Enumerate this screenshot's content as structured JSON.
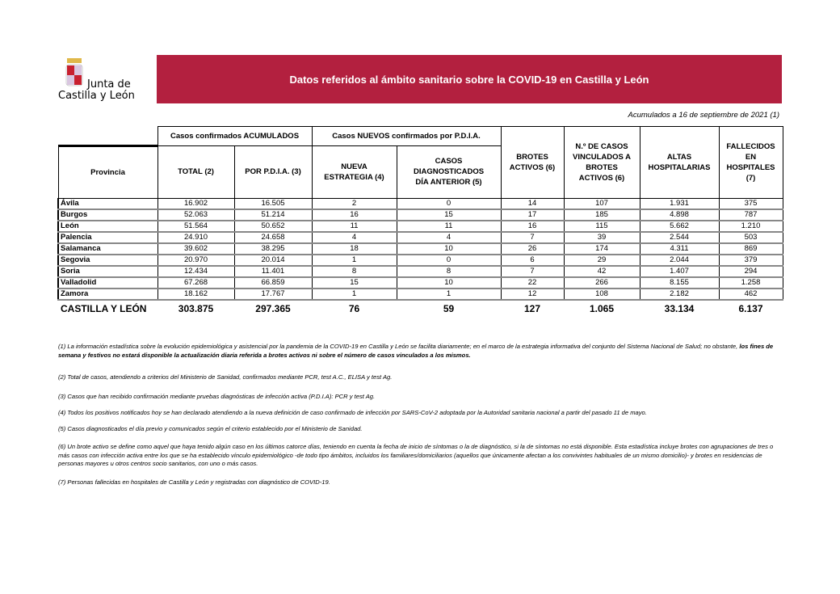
{
  "logo": {
    "line1": "Junta de",
    "line2": "Castilla y León"
  },
  "banner": {
    "title": "Datos referidos al ámbito sanitario sobre la COVID-19 en Castilla y León"
  },
  "date_note": "Acumulados a 16 de septiembre de 2021 (1)",
  "colors": {
    "banner": "#b3203f"
  },
  "table": {
    "group_headers": [
      "Casos confirmados ACUMULADOS",
      "Casos NUEVOS confirmados por P.D.I.A."
    ],
    "headers": [
      "Provincia",
      "TOTAL (2)",
      "POR P.D.I.A. (3)",
      "NUEVA ESTRATEGIA (4)",
      "CASOS DIAGNOSTICADOS DÍA ANTERIOR (5)",
      "BROTES ACTIVOS (6)",
      "N.º DE CASOS VINCULADOS A BROTES ACTIVOS (6)",
      "ALTAS HOSPITALARIAS",
      "FALLECIDOS EN HOSPITALES (7)"
    ],
    "rows": [
      [
        "Ávila",
        "16.902",
        "16.505",
        "2",
        "0",
        "14",
        "107",
        "1.931",
        "375"
      ],
      [
        "Burgos",
        "52.063",
        "51.214",
        "16",
        "15",
        "17",
        "185",
        "4.898",
        "787"
      ],
      [
        "León",
        "51.564",
        "50.652",
        "11",
        "11",
        "16",
        "115",
        "5.662",
        "1.210"
      ],
      [
        "Palencia",
        "24.910",
        "24.658",
        "4",
        "4",
        "7",
        "39",
        "2.544",
        "503"
      ],
      [
        "Salamanca",
        "39.602",
        "38.295",
        "18",
        "10",
        "26",
        "174",
        "4.311",
        "869"
      ],
      [
        "Segovia",
        "20.970",
        "20.014",
        "1",
        "0",
        "6",
        "29",
        "2.044",
        "379"
      ],
      [
        "Soria",
        "12.434",
        "11.401",
        "8",
        "8",
        "7",
        "42",
        "1.407",
        "294"
      ],
      [
        "Valladolid",
        "67.268",
        "66.859",
        "15",
        "10",
        "22",
        "266",
        "8.155",
        "1.258"
      ],
      [
        "Zamora",
        "18.162",
        "17.767",
        "1",
        "1",
        "12",
        "108",
        "2.182",
        "462"
      ]
    ],
    "total": [
      "CASTILLA Y LEÓN",
      "303.875",
      "297.365",
      "76",
      "59",
      "127",
      "1.065",
      "33.134",
      "6.137"
    ]
  },
  "notes": {
    "n1a": "(1) La información estadística sobre la evolución epidemiológica y asistencial por la pandemia de la COVID-19 en Castilla y León se facilita diariamente; en el marco de la estrategia informativa del conjunto del Sistema Nacional de Salud; no obstante, ",
    "n1b": "los fines de semana y festivos no estará disponible la actualización diaria referida a brotes activos ni sobre el número de casos vinculados a los mismos.",
    "n2": "(2) Total de casos, atendiendo a criterios del Ministerio de Sanidad, confirmados mediante PCR, test A.C., ELISA y test Ag.",
    "n3": "(3) Casos que han recibido confirmación mediante pruebas diagnósticas de infección activa (P.D.I.A): PCR y test Ag.",
    "n4": "(4) Todos los positivos notificados hoy se han declarado atendiendo a la nueva definición de caso confirmado de infección por SARS-CoV-2 adoptada por la Autoridad sanitaria nacional a partir del pasado 11 de mayo.",
    "n5": "(5) Casos diagnosticados el día previo y comunicados según el criterio establecido por el Ministerio de Sanidad.",
    "n6": "(6)  Un brote activo se define como aquel que haya tenido algún caso en los últimos catorce días, teniendo en cuenta la fecha de inicio de síntomas o la de diagnóstico, si la de síntomas no está disponible. Esta estadística incluye brotes con agrupaciones de tres o más casos con infección activa entre los que se ha establecido vínculo epidemiológico -de todo tipo ámbitos, incluidos los familiares/domiciliarios (aquellos que únicamente afectan a los convivintes habituales de un mismo domicilio)- y brotes en residencias de personas mayores u otros centros socio sanitarios, con uno o más casos.",
    "n7": "(7) Personas fallecidas en hospitales de Castilla y León y registradas con diagnóstico de COVID-19."
  }
}
